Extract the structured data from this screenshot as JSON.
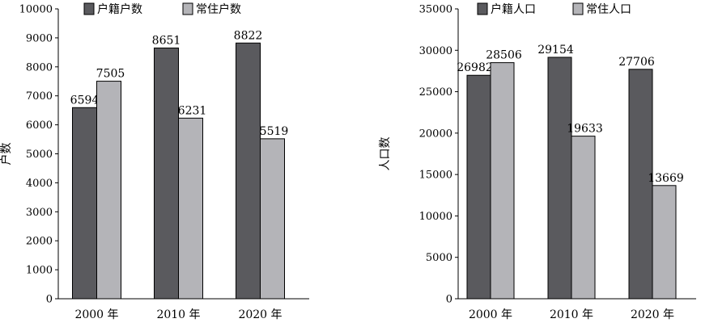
{
  "chart_data": [
    {
      "type": "bar",
      "categories": [
        "2000 年",
        "2010 年",
        "2020 年"
      ],
      "series": [
        {
          "name": "户籍户数",
          "values": [
            6594,
            8651,
            8822
          ],
          "color": "#5a5a5e"
        },
        {
          "name": "常住户数",
          "values": [
            7505,
            6231,
            5519
          ],
          "color": "#b4b4b8"
        }
      ],
      "ylabel": "户数",
      "xlabel": "",
      "title": "",
      "ylim": [
        0,
        10000
      ],
      "yticks": [
        0,
        1000,
        2000,
        3000,
        4000,
        5000,
        6000,
        7000,
        8000,
        9000,
        10000
      ],
      "grid": false,
      "legend": "top"
    },
    {
      "type": "bar",
      "categories": [
        "2000 年",
        "2010 年",
        "2020 年"
      ],
      "series": [
        {
          "name": "户籍人口",
          "values": [
            26982,
            29154,
            27706
          ],
          "color": "#5a5a5e"
        },
        {
          "name": "常住人口",
          "values": [
            28506,
            19633,
            13669
          ],
          "color": "#b4b4b8"
        }
      ],
      "ylabel": "人口数",
      "xlabel": "",
      "title": "",
      "ylim": [
        0,
        35000
      ],
      "yticks": [
        0,
        5000,
        10000,
        15000,
        20000,
        25000,
        30000,
        35000
      ],
      "grid": false,
      "legend": "top"
    }
  ]
}
